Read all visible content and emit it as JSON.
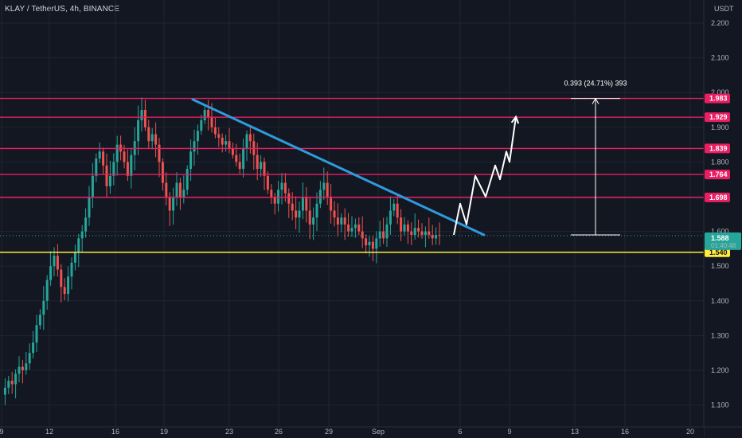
{
  "header": {
    "symbol_title": "KLAY / TetherUS, 4h, BINANCE",
    "currency": "USDT"
  },
  "chart_data": {
    "type": "candlestick",
    "title": "KLAY / TetherUS, 4h, BINANCE",
    "y_unit": "USDT",
    "ylim": [
      1.05,
      2.25
    ],
    "y_ticks": [
      "2.200",
      "2.100",
      "2.000",
      "1.900",
      "1.800",
      "1.700",
      "1.600",
      "1.500",
      "1.400",
      "1.300",
      "1.200",
      "1.100"
    ],
    "x_ticks": [
      "9",
      "12",
      "16",
      "19",
      "23",
      "26",
      "29",
      "Sep",
      "6",
      "9",
      "13",
      "16",
      "20"
    ],
    "candle_series": [
      1.13,
      1.15,
      1.17,
      1.16,
      1.19,
      1.21,
      1.2,
      1.22,
      1.25,
      1.28,
      1.33,
      1.36,
      1.4,
      1.46,
      1.5,
      1.53,
      1.49,
      1.44,
      1.42,
      1.47,
      1.51,
      1.54,
      1.58,
      1.6,
      1.64,
      1.7,
      1.76,
      1.81,
      1.83,
      1.79,
      1.73,
      1.76,
      1.8,
      1.85,
      1.83,
      1.8,
      1.76,
      1.82,
      1.86,
      1.92,
      1.95,
      1.9,
      1.86,
      1.88,
      1.85,
      1.8,
      1.74,
      1.7,
      1.66,
      1.7,
      1.74,
      1.7,
      1.72,
      1.78,
      1.83,
      1.86,
      1.89,
      1.92,
      1.95,
      1.93,
      1.9,
      1.88,
      1.87,
      1.85,
      1.86,
      1.84,
      1.82,
      1.8,
      1.78,
      1.84,
      1.88,
      1.86,
      1.82,
      1.78,
      1.8,
      1.76,
      1.72,
      1.7,
      1.68,
      1.72,
      1.74,
      1.71,
      1.68,
      1.66,
      1.64,
      1.66,
      1.7,
      1.66,
      1.62,
      1.64,
      1.68,
      1.72,
      1.74,
      1.7,
      1.66,
      1.64,
      1.62,
      1.64,
      1.62,
      1.6,
      1.61,
      1.62,
      1.6,
      1.58,
      1.56,
      1.57,
      1.55,
      1.58,
      1.6,
      1.58,
      1.62,
      1.66,
      1.68,
      1.64,
      1.6,
      1.62,
      1.6,
      1.59,
      1.61,
      1.6,
      1.59,
      1.6,
      1.59,
      1.58,
      1.59,
      1.588
    ],
    "levels": [
      {
        "label": "1.983",
        "value": 1.983,
        "color": "#e91e63"
      },
      {
        "label": "1.929",
        "value": 1.929,
        "color": "#e91e63"
      },
      {
        "label": "1.839",
        "value": 1.839,
        "color": "#e91e63"
      },
      {
        "label": "1.764",
        "value": 1.764,
        "color": "#e91e63"
      },
      {
        "label": "1.698",
        "value": 1.698,
        "color": "#e91e63"
      },
      {
        "label": "1.540",
        "value": 1.54,
        "color": "#ffeb3b"
      }
    ],
    "current_price": {
      "label": "1.588",
      "countdown": "01:40:48",
      "value": 1.588,
      "color": "#26a69a"
    },
    "measure": {
      "label": "0.393 (24.71%) 393",
      "from": 1.59,
      "to": 1.983
    },
    "trendline": {
      "color": "#2e9bdc",
      "start": 1.98,
      "end": 1.59
    },
    "projection": {
      "color": "#ffffff",
      "points": [
        1.59,
        1.68,
        1.62,
        1.76,
        1.7,
        1.79,
        1.75,
        1.83,
        1.8,
        1.93
      ]
    },
    "colors": {
      "up": "#26a69a",
      "down": "#ef5350",
      "background": "#131722",
      "grid": "#1f2430"
    }
  }
}
